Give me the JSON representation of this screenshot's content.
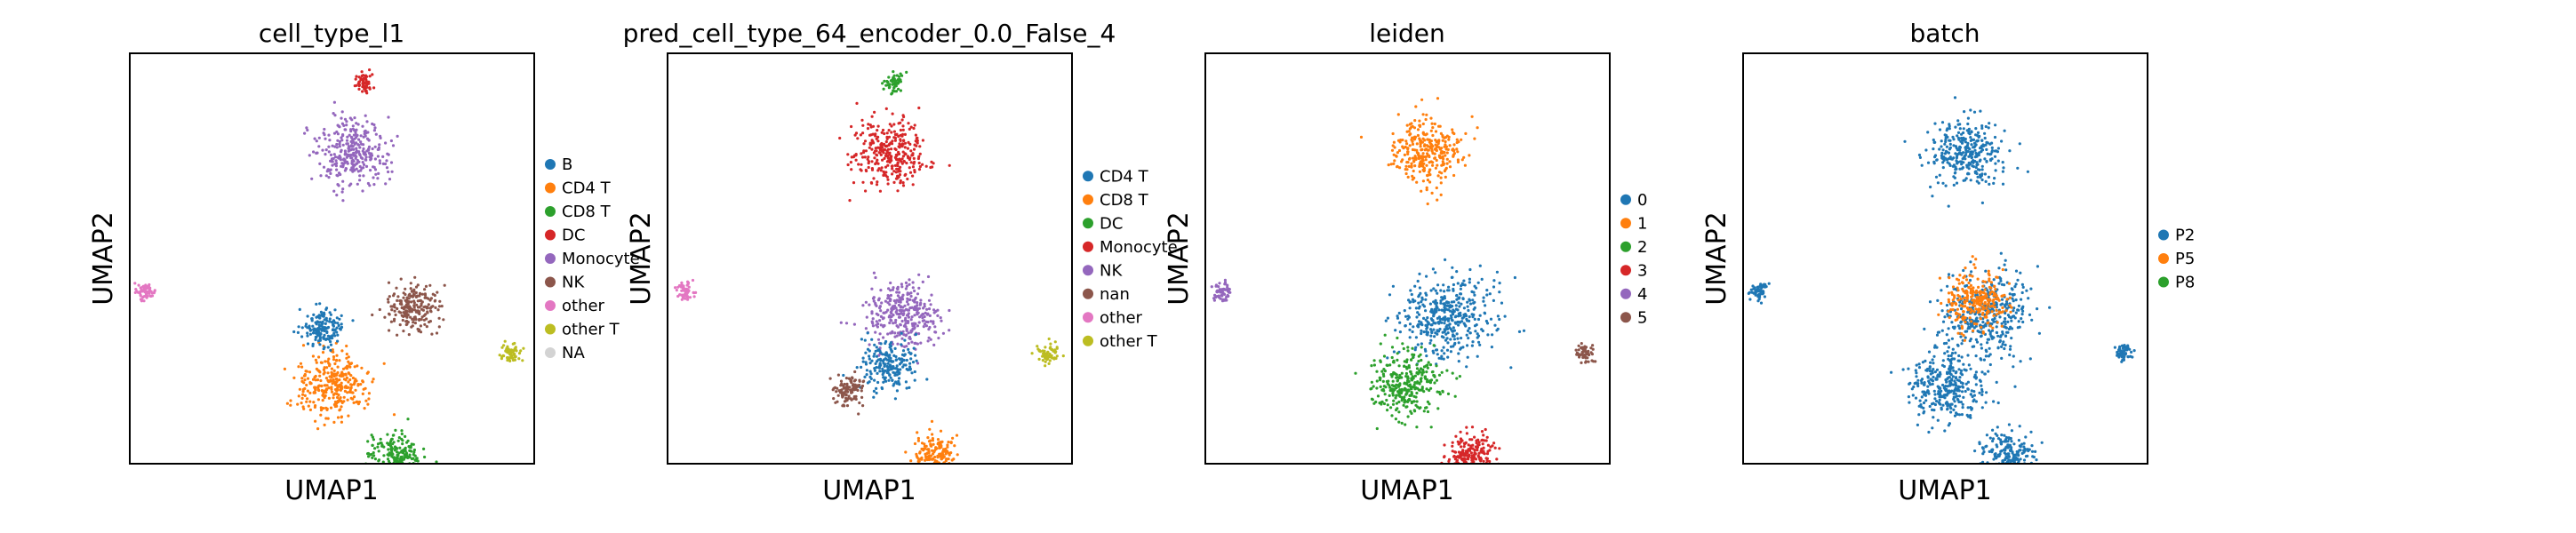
{
  "chart_data": [
    {
      "type": "scatter",
      "title": "cell_type_l1",
      "xlabel": "UMAP1",
      "ylabel": "UMAP2",
      "grid": false,
      "legend_position": "right",
      "legend": [
        {
          "label": "B",
          "color": "#1f77b4"
        },
        {
          "label": "CD4 T",
          "color": "#ff7f0e"
        },
        {
          "label": "CD8 T",
          "color": "#2ca02c"
        },
        {
          "label": "DC",
          "color": "#d62728"
        },
        {
          "label": "Monocyte",
          "color": "#9467bd"
        },
        {
          "label": "NK",
          "color": "#8c564b"
        },
        {
          "label": "other",
          "color": "#e377c2"
        },
        {
          "label": "other T",
          "color": "#bcbd22"
        },
        {
          "label": "NA",
          "color": "#d3d3d3"
        }
      ],
      "clusters": [
        {
          "label": "Monocyte",
          "x": 0.55,
          "y": 0.76,
          "size": 0.12,
          "color": "#9467bd"
        },
        {
          "label": "DC",
          "x": 0.58,
          "y": 0.93,
          "size": 0.02,
          "color": "#d62728"
        },
        {
          "label": "CD4 T",
          "x": 0.5,
          "y": 0.19,
          "size": 0.12,
          "color": "#ff7f0e"
        },
        {
          "label": "CD8 T",
          "x": 0.66,
          "y": 0.02,
          "size": 0.08,
          "color": "#2ca02c"
        },
        {
          "label": "NK",
          "x": 0.7,
          "y": 0.38,
          "size": 0.08,
          "color": "#8c564b"
        },
        {
          "label": "B",
          "x": 0.48,
          "y": 0.33,
          "size": 0.06,
          "color": "#1f77b4"
        },
        {
          "label": "other",
          "x": 0.04,
          "y": 0.42,
          "size": 0.02,
          "color": "#e377c2"
        },
        {
          "label": "other T",
          "x": 0.94,
          "y": 0.27,
          "size": 0.02,
          "color": "#bcbd22"
        }
      ]
    },
    {
      "type": "scatter",
      "title": "pred_cell_type_64_encoder_0.0_False_4",
      "xlabel": "UMAP1",
      "ylabel": "UMAP2",
      "grid": false,
      "legend_position": "right",
      "legend": [
        {
          "label": "CD4 T",
          "color": "#1f77b4"
        },
        {
          "label": "CD8 T",
          "color": "#ff7f0e"
        },
        {
          "label": "DC",
          "color": "#2ca02c"
        },
        {
          "label": "Monocyte",
          "color": "#d62728"
        },
        {
          "label": "NK",
          "color": "#9467bd"
        },
        {
          "label": "nan",
          "color": "#8c564b"
        },
        {
          "label": "other",
          "color": "#e377c2"
        },
        {
          "label": "other T",
          "color": "#bcbd22"
        }
      ],
      "clusters": [
        {
          "label": "Monocyte",
          "x": 0.55,
          "y": 0.76,
          "size": 0.12,
          "color": "#d62728"
        },
        {
          "label": "DC",
          "x": 0.56,
          "y": 0.93,
          "size": 0.02,
          "color": "#2ca02c"
        },
        {
          "label": "NK",
          "x": 0.58,
          "y": 0.36,
          "size": 0.12,
          "color": "#9467bd"
        },
        {
          "label": "CD4 T",
          "x": 0.55,
          "y": 0.24,
          "size": 0.08,
          "color": "#1f77b4"
        },
        {
          "label": "CD8 T",
          "x": 0.66,
          "y": 0.02,
          "size": 0.06,
          "color": "#ff7f0e"
        },
        {
          "label": "nan",
          "x": 0.45,
          "y": 0.18,
          "size": 0.04,
          "color": "#8c564b"
        },
        {
          "label": "other",
          "x": 0.04,
          "y": 0.42,
          "size": 0.02,
          "color": "#e377c2"
        },
        {
          "label": "other T",
          "x": 0.94,
          "y": 0.27,
          "size": 0.02,
          "color": "#bcbd22"
        }
      ]
    },
    {
      "type": "scatter",
      "title": "leiden",
      "xlabel": "UMAP1",
      "ylabel": "UMAP2",
      "grid": false,
      "legend_position": "right",
      "legend": [
        {
          "label": "0",
          "color": "#1f77b4"
        },
        {
          "label": "1",
          "color": "#ff7f0e"
        },
        {
          "label": "2",
          "color": "#2ca02c"
        },
        {
          "label": "3",
          "color": "#d62728"
        },
        {
          "label": "4",
          "color": "#9467bd"
        },
        {
          "label": "5",
          "color": "#8c564b"
        }
      ],
      "clusters": [
        {
          "label": "1",
          "x": 0.55,
          "y": 0.76,
          "size": 0.12,
          "color": "#ff7f0e"
        },
        {
          "label": "0",
          "x": 0.6,
          "y": 0.36,
          "size": 0.16,
          "color": "#1f77b4"
        },
        {
          "label": "2",
          "x": 0.5,
          "y": 0.19,
          "size": 0.12,
          "color": "#2ca02c"
        },
        {
          "label": "3",
          "x": 0.66,
          "y": 0.02,
          "size": 0.08,
          "color": "#d62728"
        },
        {
          "label": "4",
          "x": 0.04,
          "y": 0.42,
          "size": 0.02,
          "color": "#9467bd"
        },
        {
          "label": "5",
          "x": 0.94,
          "y": 0.27,
          "size": 0.02,
          "color": "#8c564b"
        }
      ]
    },
    {
      "type": "scatter",
      "title": "batch",
      "xlabel": "UMAP1",
      "ylabel": "UMAP2",
      "grid": false,
      "legend_position": "right",
      "legend": [
        {
          "label": "P2",
          "color": "#1f77b4"
        },
        {
          "label": "P5",
          "color": "#ff7f0e"
        },
        {
          "label": "P8",
          "color": "#2ca02c"
        }
      ],
      "clusters": [
        {
          "label": "P2",
          "x": 0.55,
          "y": 0.76,
          "size": 0.12,
          "color": "#1f77b4"
        },
        {
          "label": "P2",
          "x": 0.6,
          "y": 0.36,
          "size": 0.16,
          "color": "#1f77b4"
        },
        {
          "label": "P2",
          "x": 0.5,
          "y": 0.19,
          "size": 0.12,
          "color": "#1f77b4"
        },
        {
          "label": "P2",
          "x": 0.66,
          "y": 0.02,
          "size": 0.08,
          "color": "#1f77b4"
        },
        {
          "label": "P5",
          "x": 0.58,
          "y": 0.4,
          "size": 0.1,
          "color": "#ff7f0e"
        },
        {
          "label": "P2",
          "x": 0.04,
          "y": 0.42,
          "size": 0.02,
          "color": "#1f77b4"
        },
        {
          "label": "P2",
          "x": 0.94,
          "y": 0.27,
          "size": 0.02,
          "color": "#1f77b4"
        }
      ]
    }
  ]
}
